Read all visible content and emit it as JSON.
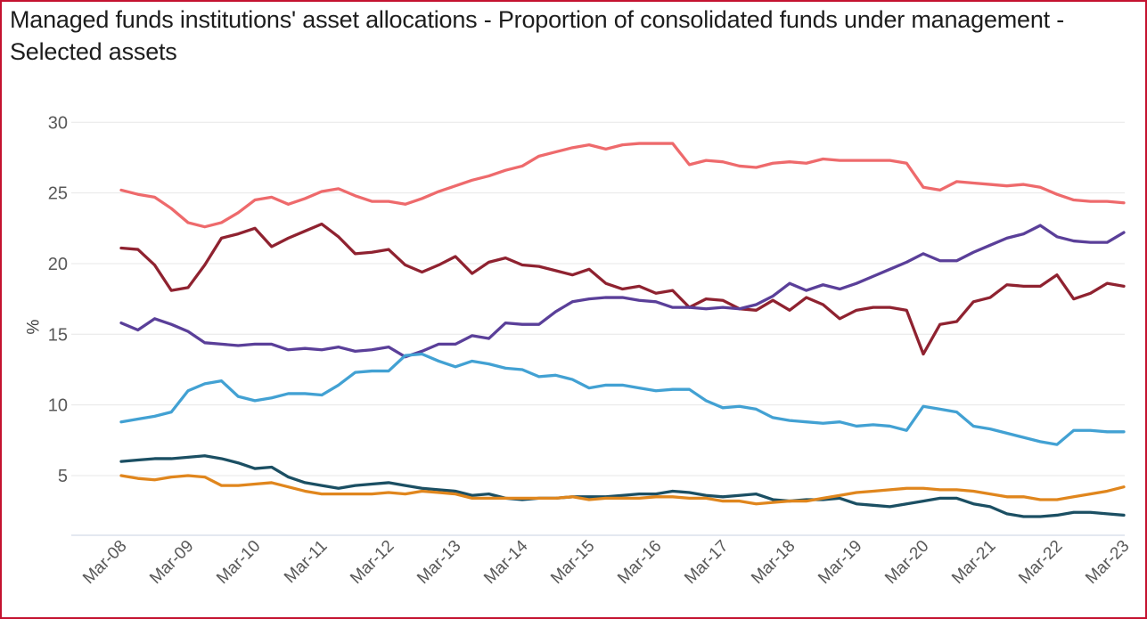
{
  "page": {
    "background": "#ffffff",
    "frame_border_color": "#c41230"
  },
  "header": {
    "title": "Managed funds institutions' asset allocations - Proportion of consolidated funds under management - Selected assets"
  },
  "chart_data": {
    "type": "line",
    "title": "Managed funds institutions' asset allocations - Proportion of consolidated funds under management - Selected assets",
    "xlabel": "",
    "ylabel": "%",
    "ylim": [
      0.8,
      30
    ],
    "y_ticks": [
      5,
      10,
      15,
      20,
      25,
      30
    ],
    "grid": "horizontal",
    "legend": "none",
    "x_frequency": "quarterly",
    "x_start": "Mar-08",
    "x_tick_every": 4,
    "x_tick_labels": [
      "Mar-08",
      "Mar-09",
      "Mar-10",
      "Mar-11",
      "Mar-12",
      "Mar-13",
      "Mar-14",
      "Mar-15",
      "Mar-16",
      "Mar-17",
      "Mar-18",
      "Mar-19",
      "Mar-20",
      "Mar-21",
      "Mar-22",
      "Mar-23"
    ],
    "axis_text_color": "#595959",
    "gridline_color": "#e7e7e7",
    "baseline_color": "#dbe0ec",
    "series": [
      {
        "name": "series-coral",
        "color": "#ee6a6c",
        "values": [
          25.2,
          24.9,
          24.7,
          23.9,
          22.9,
          22.6,
          22.9,
          23.6,
          24.5,
          24.7,
          24.2,
          24.6,
          25.1,
          25.3,
          24.8,
          24.4,
          24.4,
          24.2,
          24.6,
          25.1,
          25.5,
          25.9,
          26.2,
          26.6,
          26.9,
          27.6,
          27.9,
          28.2,
          28.4,
          28.1,
          28.4,
          28.5,
          28.5,
          28.5,
          27.0,
          27.3,
          27.2,
          26.9,
          26.8,
          27.1,
          27.2,
          27.1,
          27.4,
          27.3,
          27.3,
          27.3,
          27.3,
          27.1,
          25.4,
          25.2,
          25.8,
          25.7,
          25.6,
          25.5,
          25.6,
          25.4,
          24.9,
          24.5,
          24.4,
          24.4,
          24.3
        ]
      },
      {
        "name": "series-dark-red",
        "color": "#8f2230",
        "values": [
          21.1,
          21.0,
          19.9,
          18.1,
          18.3,
          19.9,
          21.8,
          22.1,
          22.5,
          21.2,
          21.8,
          22.3,
          22.8,
          21.9,
          20.7,
          20.8,
          21.0,
          19.9,
          19.4,
          19.9,
          20.5,
          19.3,
          20.1,
          20.4,
          19.9,
          19.8,
          19.5,
          19.2,
          19.6,
          18.6,
          18.2,
          18.4,
          17.9,
          18.1,
          16.9,
          17.5,
          17.4,
          16.8,
          16.7,
          17.4,
          16.7,
          17.6,
          17.1,
          16.1,
          16.7,
          16.9,
          16.9,
          16.7,
          13.6,
          15.7,
          15.9,
          17.3,
          17.6,
          18.5,
          18.4,
          18.4,
          19.2,
          17.5,
          17.9,
          18.6,
          18.4
        ]
      },
      {
        "name": "series-purple",
        "color": "#5a3f99",
        "values": [
          15.8,
          15.3,
          16.1,
          15.7,
          15.2,
          14.4,
          14.3,
          14.2,
          14.3,
          14.3,
          13.9,
          14.0,
          13.9,
          14.1,
          13.8,
          13.9,
          14.1,
          13.4,
          13.8,
          14.3,
          14.3,
          14.9,
          14.7,
          15.8,
          15.7,
          15.7,
          16.6,
          17.3,
          17.5,
          17.6,
          17.6,
          17.4,
          17.3,
          16.9,
          16.9,
          16.8,
          16.9,
          16.8,
          17.1,
          17.7,
          18.6,
          18.1,
          18.5,
          18.2,
          18.6,
          19.1,
          19.6,
          20.1,
          20.7,
          20.2,
          20.2,
          20.8,
          21.3,
          21.8,
          22.1,
          22.7,
          21.9,
          21.6,
          21.5,
          21.5,
          22.2
        ]
      },
      {
        "name": "series-light-blue",
        "color": "#42a1d3",
        "values": [
          8.8,
          9.0,
          9.2,
          9.5,
          11.0,
          11.5,
          11.7,
          10.6,
          10.3,
          10.5,
          10.8,
          10.8,
          10.7,
          11.4,
          12.3,
          12.4,
          12.4,
          13.5,
          13.6,
          13.1,
          12.7,
          13.1,
          12.9,
          12.6,
          12.5,
          12.0,
          12.1,
          11.8,
          11.2,
          11.4,
          11.4,
          11.2,
          11.0,
          11.1,
          11.1,
          10.3,
          9.8,
          9.9,
          9.7,
          9.1,
          8.9,
          8.8,
          8.7,
          8.8,
          8.5,
          8.6,
          8.5,
          8.2,
          9.9,
          9.7,
          9.5,
          8.5,
          8.3,
          8.0,
          7.7,
          7.4,
          7.2,
          8.2,
          8.2,
          8.1,
          8.1
        ]
      },
      {
        "name": "series-dark-teal",
        "color": "#1b4f63",
        "values": [
          6.0,
          6.1,
          6.2,
          6.2,
          6.3,
          6.4,
          6.2,
          5.9,
          5.5,
          5.6,
          4.9,
          4.5,
          4.3,
          4.1,
          4.3,
          4.4,
          4.5,
          4.3,
          4.1,
          4.0,
          3.9,
          3.6,
          3.7,
          3.4,
          3.3,
          3.4,
          3.4,
          3.5,
          3.5,
          3.5,
          3.6,
          3.7,
          3.7,
          3.9,
          3.8,
          3.6,
          3.5,
          3.6,
          3.7,
          3.3,
          3.2,
          3.3,
          3.3,
          3.4,
          3.0,
          2.9,
          2.8,
          3.0,
          3.2,
          3.4,
          3.4,
          3.0,
          2.8,
          2.3,
          2.1,
          2.1,
          2.2,
          2.4,
          2.4,
          2.3,
          2.2
        ]
      },
      {
        "name": "series-orange",
        "color": "#e0861d",
        "values": [
          5.0,
          4.8,
          4.7,
          4.9,
          5.0,
          4.9,
          4.3,
          4.3,
          4.4,
          4.5,
          4.2,
          3.9,
          3.7,
          3.7,
          3.7,
          3.7,
          3.8,
          3.7,
          3.9,
          3.8,
          3.7,
          3.4,
          3.4,
          3.4,
          3.4,
          3.4,
          3.4,
          3.5,
          3.3,
          3.4,
          3.4,
          3.4,
          3.5,
          3.5,
          3.4,
          3.4,
          3.2,
          3.2,
          3.0,
          3.1,
          3.2,
          3.2,
          3.4,
          3.6,
          3.8,
          3.9,
          4.0,
          4.1,
          4.1,
          4.0,
          4.0,
          3.9,
          3.7,
          3.5,
          3.5,
          3.3,
          3.3,
          3.5,
          3.7,
          3.9,
          4.2
        ]
      }
    ]
  }
}
